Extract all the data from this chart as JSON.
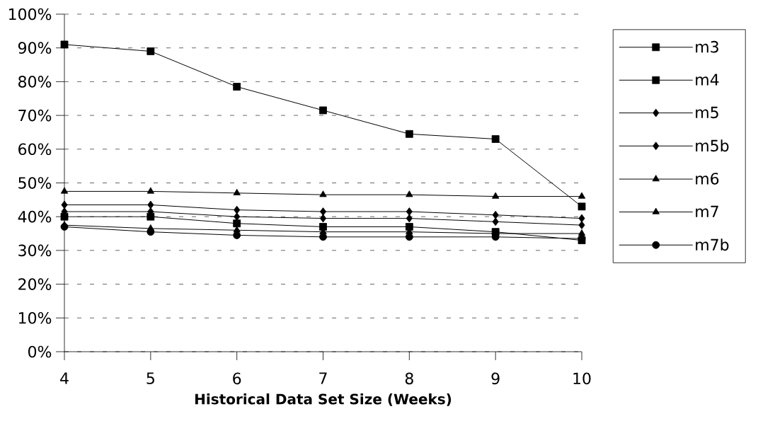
{
  "chart_data": {
    "type": "line",
    "xlabel": "Historical Data Set Size (Weeks)",
    "x": [
      4,
      5,
      6,
      7,
      8,
      9,
      10
    ],
    "xlim": [
      4,
      10
    ],
    "xticks": [
      4,
      5,
      6,
      7,
      8,
      9,
      10
    ],
    "ylim": [
      0,
      100
    ],
    "yticks": [
      {
        "value": 0,
        "label": "0%"
      },
      {
        "value": 10,
        "label": "10%"
      },
      {
        "value": 20,
        "label": "20%"
      },
      {
        "value": 30,
        "label": "30%"
      },
      {
        "value": 40,
        "label": "40%"
      },
      {
        "value": 50,
        "label": "50%"
      },
      {
        "value": 60,
        "label": "60%"
      },
      {
        "value": 70,
        "label": "70%"
      },
      {
        "value": 80,
        "label": "80%"
      },
      {
        "value": 90,
        "label": "90%"
      },
      {
        "value": 100,
        "label": "100%"
      }
    ],
    "grid": "y",
    "legend": "right",
    "line_style": "solid",
    "series": [
      {
        "name": "m3",
        "color": "#000000",
        "marker": "square",
        "values": [
          91,
          89,
          78.5,
          71.5,
          64.5,
          63,
          43
        ]
      },
      {
        "name": "m4",
        "color": "#000000",
        "marker": "square",
        "values": [
          40,
          40,
          38,
          37,
          37,
          35.5,
          33
        ]
      },
      {
        "name": "m5",
        "color": "#000000",
        "marker": "diamond",
        "values": [
          43.5,
          43.5,
          42,
          41.5,
          41.5,
          40.5,
          39.5
        ]
      },
      {
        "name": "m5b",
        "color": "#000000",
        "marker": "diamond",
        "values": [
          41.5,
          41.5,
          40,
          39.5,
          39.5,
          38.5,
          37.5
        ]
      },
      {
        "name": "m6",
        "color": "#000000",
        "marker": "triangle",
        "values": [
          47.5,
          47.5,
          47,
          46.5,
          46.5,
          46,
          46
        ]
      },
      {
        "name": "m7",
        "color": "#000000",
        "marker": "triangle",
        "values": [
          37.5,
          36.5,
          36,
          35.5,
          35.5,
          35,
          35
        ]
      },
      {
        "name": "m7b",
        "color": "#000000",
        "marker": "circle",
        "values": [
          37,
          35.5,
          34.5,
          34,
          34,
          34,
          33.5
        ]
      }
    ]
  }
}
